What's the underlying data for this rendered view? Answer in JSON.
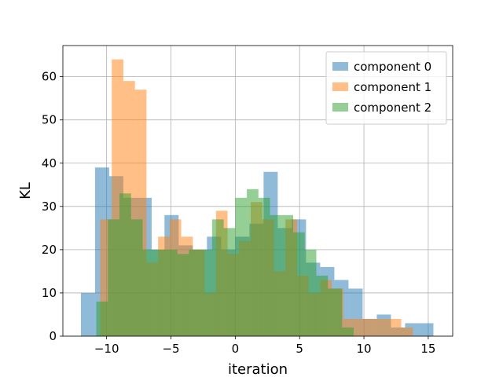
{
  "chart_data": {
    "type": "histogram",
    "title": "",
    "xlabel": "iteration",
    "ylabel": "KL",
    "xlim": [
      -13.4,
      16.9
    ],
    "ylim": [
      0,
      67.2
    ],
    "xticks": [
      -10,
      -5,
      0,
      5,
      10,
      15
    ],
    "yticks": [
      0,
      10,
      20,
      30,
      40,
      50,
      60
    ],
    "xtick_labels": [
      "−10",
      "−5",
      "0",
      "5",
      "10",
      "15"
    ],
    "ytick_labels": [
      "0",
      "10",
      "20",
      "30",
      "40",
      "50",
      "60"
    ],
    "grid": true,
    "legend_position": "top-right",
    "bar_alpha": 0.5,
    "series": [
      {
        "name": "component 0",
        "color": "#1f77b4",
        "bins": [
          -12.0,
          -10.9,
          -9.8,
          -8.7,
          -7.6,
          -6.5,
          -5.5,
          -4.4,
          -3.3,
          -2.2,
          -1.1,
          0.0,
          1.1,
          2.2,
          3.3,
          4.4,
          5.5,
          6.6,
          7.7,
          8.8,
          9.9,
          11.0,
          12.1,
          13.2,
          14.3,
          15.4
        ],
        "counts": [
          10,
          39,
          37,
          32,
          32,
          20,
          28,
          21,
          20,
          23,
          20,
          23,
          26,
          38,
          25,
          27,
          17,
          16,
          13,
          11,
          4,
          5,
          2,
          3,
          3
        ]
      },
      {
        "name": "component 1",
        "color": "#ff7f0e",
        "bins": [
          -10.5,
          -9.6,
          -8.7,
          -7.8,
          -6.9,
          -6.0,
          -5.1,
          -4.2,
          -3.3,
          -2.4,
          -1.5,
          -0.6,
          0.3,
          1.2,
          2.1,
          3.0,
          3.9,
          4.8,
          5.7,
          6.6,
          7.5,
          8.4,
          9.3,
          10.2,
          11.1,
          12.0,
          12.9,
          13.8
        ],
        "counts": [
          27,
          64,
          59,
          57,
          17,
          23,
          27,
          23,
          20,
          10,
          29,
          19,
          22,
          31,
          27,
          15,
          27,
          14,
          10,
          13,
          11,
          4,
          4,
          4,
          4,
          4,
          2
        ]
      },
      {
        "name": "component 2",
        "color": "#2ca02c",
        "bins": [
          -10.8,
          -9.9,
          -9.0,
          -8.1,
          -7.2,
          -6.3,
          -5.4,
          -4.5,
          -3.6,
          -2.7,
          -1.8,
          -0.9,
          0.0,
          0.9,
          1.8,
          2.7,
          3.6,
          4.5,
          5.4,
          6.3,
          7.2,
          8.3,
          9.2
        ],
        "counts": [
          8,
          27,
          33,
          27,
          20,
          20,
          20,
          19,
          20,
          20,
          27,
          25,
          32,
          34,
          32,
          28,
          28,
          24,
          20,
          14,
          11,
          2
        ]
      }
    ]
  }
}
